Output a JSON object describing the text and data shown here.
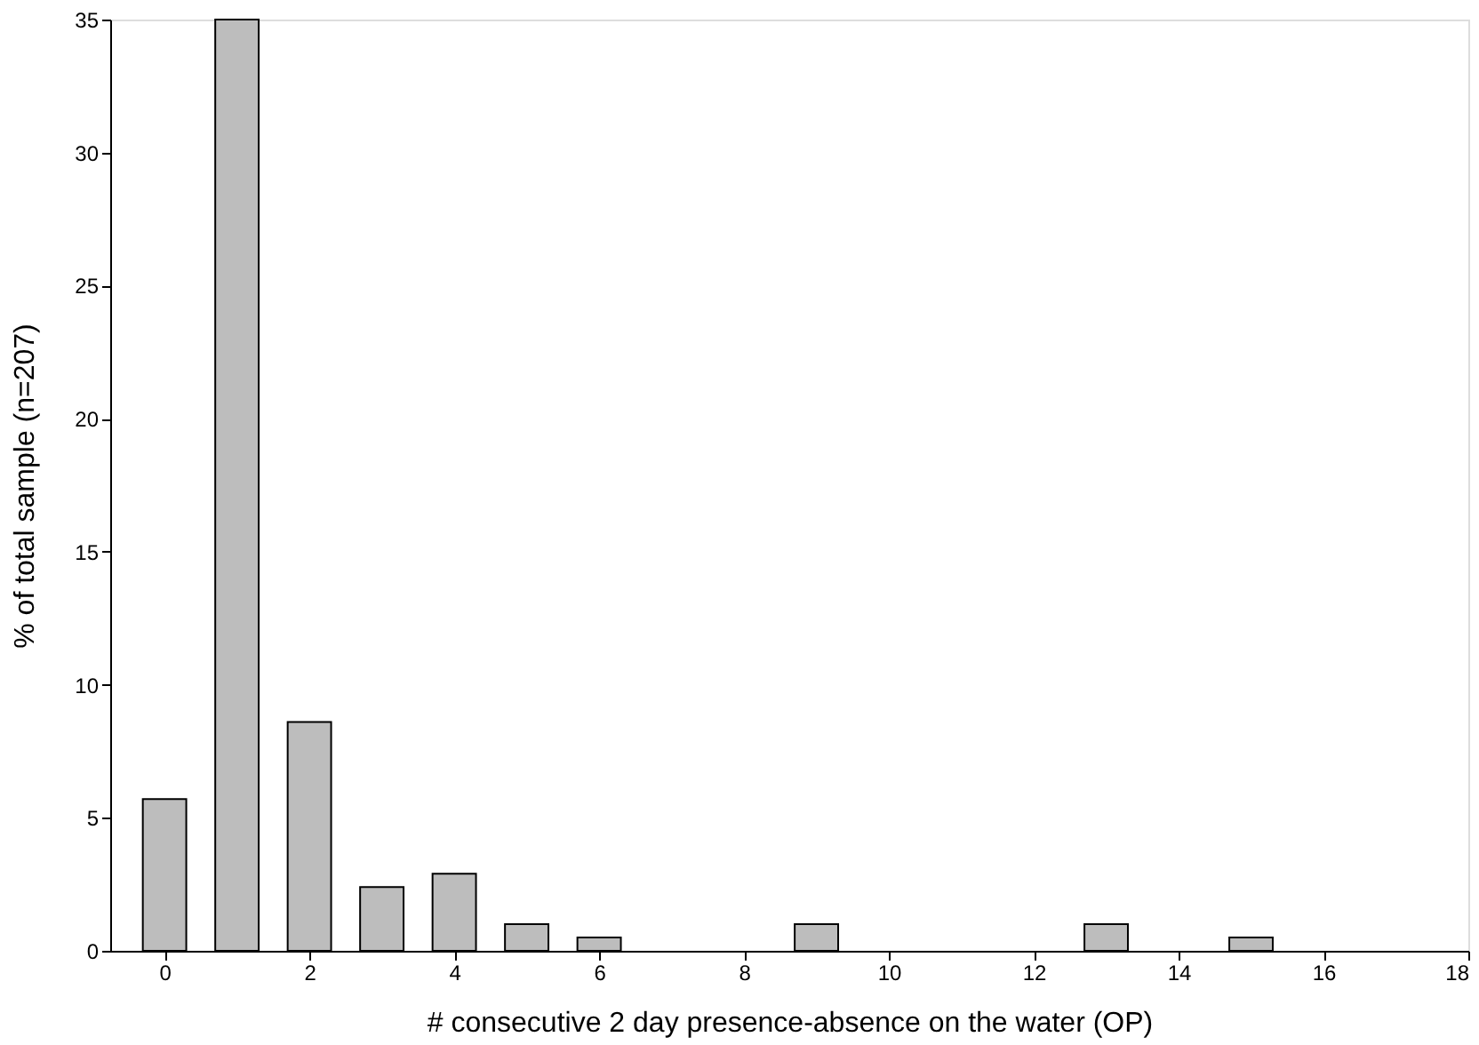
{
  "chart_data": {
    "type": "bar",
    "xlabel": "# consecutive 2 day presence-absence on the water (OP)",
    "ylabel": "% of total sample (n=207)",
    "x": [
      0,
      1,
      2,
      3,
      4,
      5,
      6,
      9,
      13,
      15
    ],
    "values": [
      5.7,
      35,
      8.6,
      2.4,
      2.9,
      1.0,
      0.5,
      1.0,
      1.0,
      0.5
    ],
    "color": "#bdbdbd",
    "xlim": [
      -0.75,
      18
    ],
    "xticks": [
      0,
      2,
      4,
      6,
      8,
      10,
      12,
      14,
      16,
      18
    ],
    "ylim": [
      0,
      35
    ],
    "yticks": [
      0,
      5,
      10,
      15,
      20,
      25,
      30,
      35
    ],
    "grid": false
  }
}
